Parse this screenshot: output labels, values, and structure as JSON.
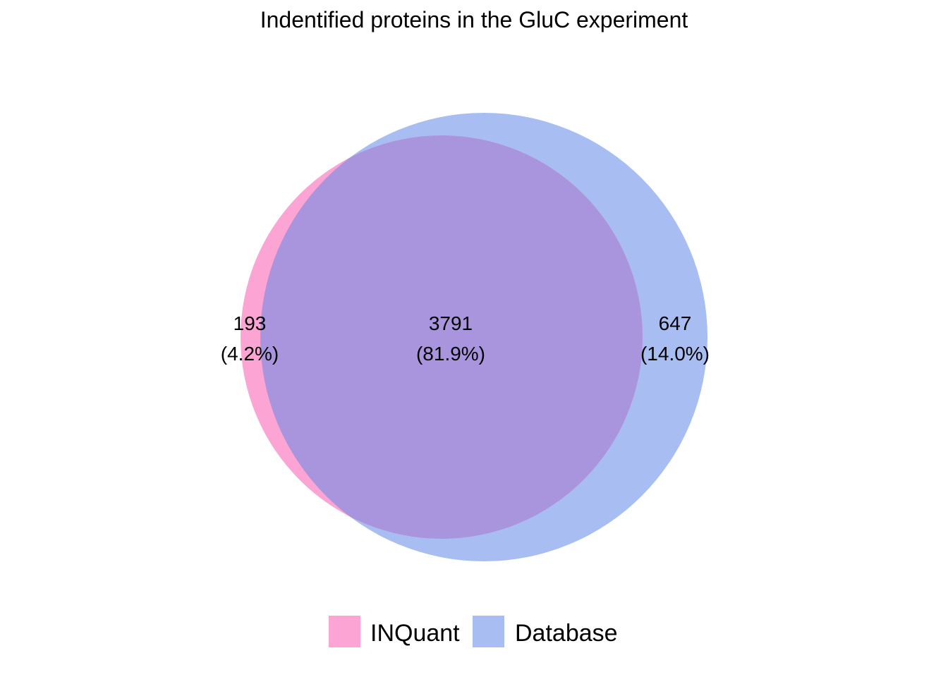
{
  "chart_data": {
    "type": "venn",
    "title": "Indentified proteins in the GluC experiment",
    "sets": [
      {
        "name": "INQuant",
        "color": "#fca4d4"
      },
      {
        "name": "Database",
        "color": "#a8bef2"
      }
    ],
    "overlap_color": "#a895de",
    "regions": [
      {
        "sets": [
          "INQuant"
        ],
        "count": "193",
        "percent": "(4.2%)"
      },
      {
        "sets": [
          "INQuant",
          "Database"
        ],
        "count": "3791",
        "percent": "(81.9%)"
      },
      {
        "sets": [
          "Database"
        ],
        "count": "647",
        "percent": "(14.0%)"
      }
    ],
    "legend": [
      {
        "label": "INQuant",
        "color": "#fca4d4"
      },
      {
        "label": "Database",
        "color": "#a8bef2"
      }
    ],
    "legend_position": "bottom"
  }
}
